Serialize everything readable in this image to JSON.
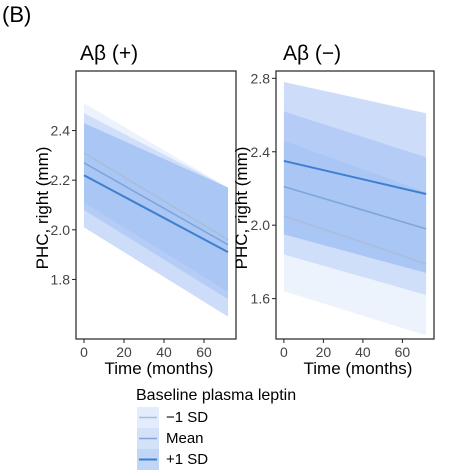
{
  "panel_label": "(B)",
  "ylabel": "PHC, right (mm)",
  "colors": {
    "minus1sd": "#a9bedb",
    "mean": "#7ea6dc",
    "plus1sd": "#3f7fd1",
    "ribbon": "#4a86e8",
    "frame": "#222222",
    "tick_label": "#444444"
  },
  "legend": {
    "title": "Baseline plasma leptin",
    "items": [
      {
        "label": "−1 SD",
        "color": "#a9bedb",
        "ribbon_opacity": 0.1
      },
      {
        "label": "Mean",
        "color": "#7ea6dc",
        "ribbon_opacity": 0.18
      },
      {
        "label": "+1 SD",
        "color": "#3f7fd1",
        "ribbon_opacity": 0.28
      }
    ]
  },
  "chart_data": [
    {
      "type": "line",
      "title": "Aβ (+)",
      "xlabel": "Time (months)",
      "ylabel": "PHC, right (mm)",
      "xlim": [
        -4,
        76
      ],
      "ylim": [
        1.56,
        2.64
      ],
      "xticks": [
        0,
        20,
        40,
        60
      ],
      "yticks": [
        1.8,
        2.0,
        2.2,
        2.4
      ],
      "ytick_labels": [
        "1.8",
        "2.0",
        "2.2",
        "2.4"
      ],
      "grid": false,
      "series": [
        {
          "name": "−1 SD",
          "x": [
            0,
            72
          ],
          "y": [
            2.31,
            1.96
          ],
          "ci_low": [
            2.11,
            1.75
          ],
          "ci_high": [
            2.51,
            2.17
          ]
        },
        {
          "name": "Mean",
          "x": [
            0,
            72
          ],
          "y": [
            2.27,
            1.94
          ],
          "ci_low": [
            2.08,
            1.72
          ],
          "ci_high": [
            2.47,
            2.17
          ]
        },
        {
          "name": "+1 SD",
          "x": [
            0,
            72
          ],
          "y": [
            2.22,
            1.91
          ],
          "ci_low": [
            2.01,
            1.65
          ],
          "ci_high": [
            2.43,
            2.17
          ]
        }
      ]
    },
    {
      "type": "line",
      "title": "Aβ (−)",
      "xlabel": "Time (months)",
      "ylabel": "",
      "xlim": [
        -4,
        76
      ],
      "ylim": [
        1.38,
        2.84
      ],
      "xticks": [
        0,
        20,
        40,
        60
      ],
      "yticks": [
        1.6,
        2.0,
        2.4,
        2.8
      ],
      "ytick_labels": [
        "1.6",
        "2.0",
        "2.4",
        "2.8"
      ],
      "grid": false,
      "series": [
        {
          "name": "−1 SD",
          "x": [
            0,
            72
          ],
          "y": [
            2.05,
            1.79
          ],
          "ci_low": [
            1.64,
            1.4
          ],
          "ci_high": [
            2.46,
            2.18
          ]
        },
        {
          "name": "Mean",
          "x": [
            0,
            72
          ],
          "y": [
            2.21,
            1.98
          ],
          "ci_low": [
            1.84,
            1.62
          ],
          "ci_high": [
            2.62,
            2.37
          ]
        },
        {
          "name": "+1 SD",
          "x": [
            0,
            72
          ],
          "y": [
            2.35,
            2.17
          ],
          "ci_low": [
            1.95,
            1.74
          ],
          "ci_high": [
            2.78,
            2.61
          ]
        }
      ]
    }
  ]
}
